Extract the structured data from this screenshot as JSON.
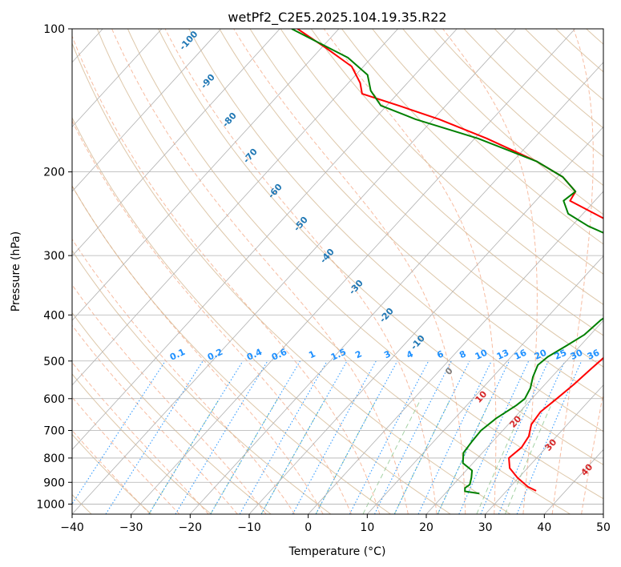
{
  "chart_data": {
    "type": "line",
    "subtype": "skew-t log-p diagram",
    "title": "wetPf2_C2E5.2025.104.19.35.R22",
    "xlabel": "Temperature (°C)",
    "ylabel": "Pressure (hPa)",
    "xlim": [
      -40,
      50
    ],
    "ylim": [
      1050,
      100
    ],
    "y_scale": "log",
    "x_ticks": [
      -40,
      -30,
      -20,
      -10,
      0,
      10,
      20,
      30,
      40,
      50
    ],
    "x_tick_labels": [
      "−40",
      "−30",
      "−20",
      "−10",
      "0",
      "10",
      "20",
      "30",
      "40",
      "50"
    ],
    "y_ticks": [
      100,
      200,
      300,
      400,
      500,
      600,
      700,
      800,
      900,
      1000
    ],
    "y_tick_labels": [
      "100",
      "200",
      "300",
      "400",
      "500",
      "600",
      "700",
      "800",
      "900",
      "1000"
    ],
    "grid": true,
    "colors": {
      "temperature": "#ff0000",
      "dewpoint": "#008000",
      "dry_adiabat_label": "#1f77b4",
      "moist_adiabat_label": "#d62728",
      "mixing_ratio_label": "#1e90ff",
      "zero_label": "#808080"
    },
    "series": [
      {
        "color": "#ff0000",
        "points": [
          {
            "p": 938,
            "t": 35.0
          },
          {
            "p": 920,
            "t": 33.0
          },
          {
            "p": 880,
            "t": 29.8
          },
          {
            "p": 840,
            "t": 27.0
          },
          {
            "p": 800,
            "t": 25.3
          },
          {
            "p": 760,
            "t": 25.8
          },
          {
            "p": 720,
            "t": 25.3
          },
          {
            "p": 680,
            "t": 23.9
          },
          {
            "p": 640,
            "t": 23.5
          },
          {
            "p": 600,
            "t": 24.2
          },
          {
            "p": 560,
            "t": 24.9
          },
          {
            "p": 520,
            "t": 25.4
          },
          {
            "p": 480,
            "t": 26.0
          },
          {
            "p": 440,
            "t": 26.8
          },
          {
            "p": 400,
            "t": 27.3
          },
          {
            "p": 370,
            "t": 26.9
          },
          {
            "p": 340,
            "t": 25.1
          },
          {
            "p": 310,
            "t": 21.5
          },
          {
            "p": 280,
            "t": 14.5
          },
          {
            "p": 250,
            "t": 4.0
          },
          {
            "p": 230,
            "t": -4.2
          },
          {
            "p": 220,
            "t": -4.7
          },
          {
            "p": 205,
            "t": -9.1
          },
          {
            "p": 190,
            "t": -16.0
          },
          {
            "p": 170,
            "t": -28.0
          },
          {
            "p": 155,
            "t": -39.0
          },
          {
            "p": 145,
            "t": -48.0
          },
          {
            "p": 137,
            "t": -56.0
          },
          {
            "p": 130,
            "t": -58.0
          },
          {
            "p": 120,
            "t": -62.0
          },
          {
            "p": 110,
            "t": -69.0
          },
          {
            "p": 100,
            "t": -77.0
          }
        ]
      },
      {
        "color": "#008000",
        "points": [
          {
            "p": 950,
            "t": 25.8
          },
          {
            "p": 940,
            "t": 23.0
          },
          {
            "p": 925,
            "t": 22.5
          },
          {
            "p": 910,
            "t": 22.8
          },
          {
            "p": 880,
            "t": 22.0
          },
          {
            "p": 850,
            "t": 21.0
          },
          {
            "p": 820,
            "t": 18.3
          },
          {
            "p": 780,
            "t": 16.8
          },
          {
            "p": 740,
            "t": 16.5
          },
          {
            "p": 700,
            "t": 16.3
          },
          {
            "p": 660,
            "t": 17.0
          },
          {
            "p": 620,
            "t": 18.4
          },
          {
            "p": 600,
            "t": 18.8
          },
          {
            "p": 570,
            "t": 18.1
          },
          {
            "p": 540,
            "t": 16.8
          },
          {
            "p": 510,
            "t": 15.8
          },
          {
            "p": 490,
            "t": 16.2
          },
          {
            "p": 465,
            "t": 17.6
          },
          {
            "p": 440,
            "t": 19.0
          },
          {
            "p": 410,
            "t": 19.5
          },
          {
            "p": 390,
            "t": 20.6
          },
          {
            "p": 370,
            "t": 22.2
          },
          {
            "p": 350,
            "t": 23.5
          },
          {
            "p": 335,
            "t": 22.5
          },
          {
            "p": 310,
            "t": 19.0
          },
          {
            "p": 280,
            "t": 11.0
          },
          {
            "p": 260,
            "t": 2.8
          },
          {
            "p": 245,
            "t": -2.5
          },
          {
            "p": 230,
            "t": -5.3
          },
          {
            "p": 220,
            "t": -4.7
          },
          {
            "p": 205,
            "t": -9.1
          },
          {
            "p": 190,
            "t": -16.0
          },
          {
            "p": 170,
            "t": -29.5
          },
          {
            "p": 155,
            "t": -43.0
          },
          {
            "p": 145,
            "t": -51.0
          },
          {
            "p": 135,
            "t": -55.0
          },
          {
            "p": 125,
            "t": -58.0
          },
          {
            "p": 115,
            "t": -64.0
          },
          {
            "p": 100,
            "t": -78.0
          }
        ]
      }
    ],
    "dry_adiabat_labels": [
      "-100",
      "-90",
      "-80",
      "-70",
      "-60",
      "-50",
      "-40",
      "-30",
      "-20",
      "-10"
    ],
    "moist_adiabat_labels": [
      "10",
      "20",
      "30",
      "40"
    ],
    "zero_label": "0",
    "mixing_ratio_labels": [
      "0.1",
      "0.2",
      "0.4",
      "0.6",
      "1",
      "1.5",
      "2",
      "3",
      "4",
      "6",
      "8",
      "10",
      "13",
      "16",
      "20",
      "25",
      "30",
      "36"
    ]
  }
}
